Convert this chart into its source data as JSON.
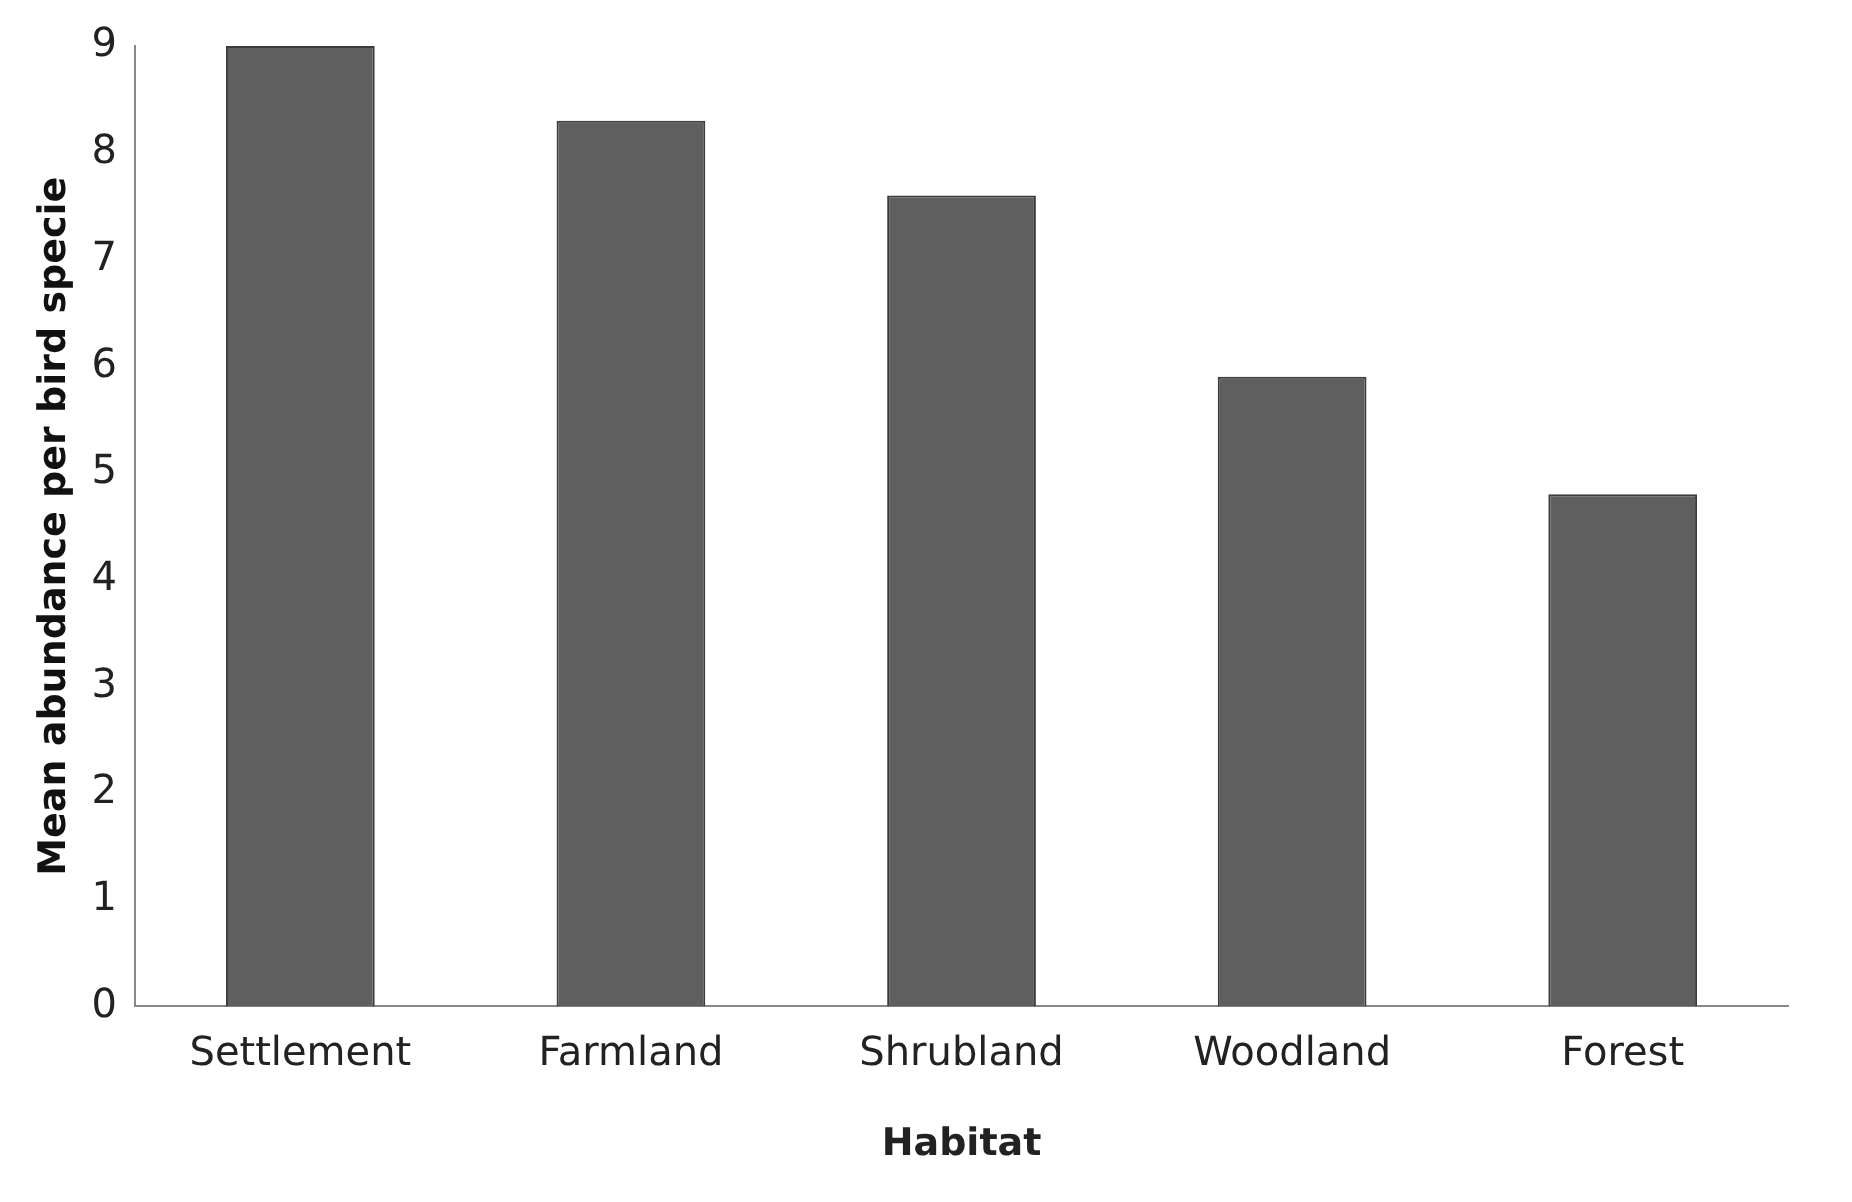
{
  "chart_data": {
    "type": "bar",
    "xlabel": "Habitat",
    "ylabel": "Mean abundance per bird specie",
    "categories": [
      "Settlement",
      "Farmland",
      "Shrubland",
      "Woodland",
      "Forest"
    ],
    "values": [
      9.0,
      8.3,
      7.6,
      5.9,
      4.8
    ],
    "color": "#5f5f5f",
    "ylim": [
      0,
      9
    ],
    "yticks": [
      0,
      1,
      2,
      3,
      4,
      5,
      6,
      7,
      8,
      9
    ],
    "grid": false,
    "legend": false
  }
}
